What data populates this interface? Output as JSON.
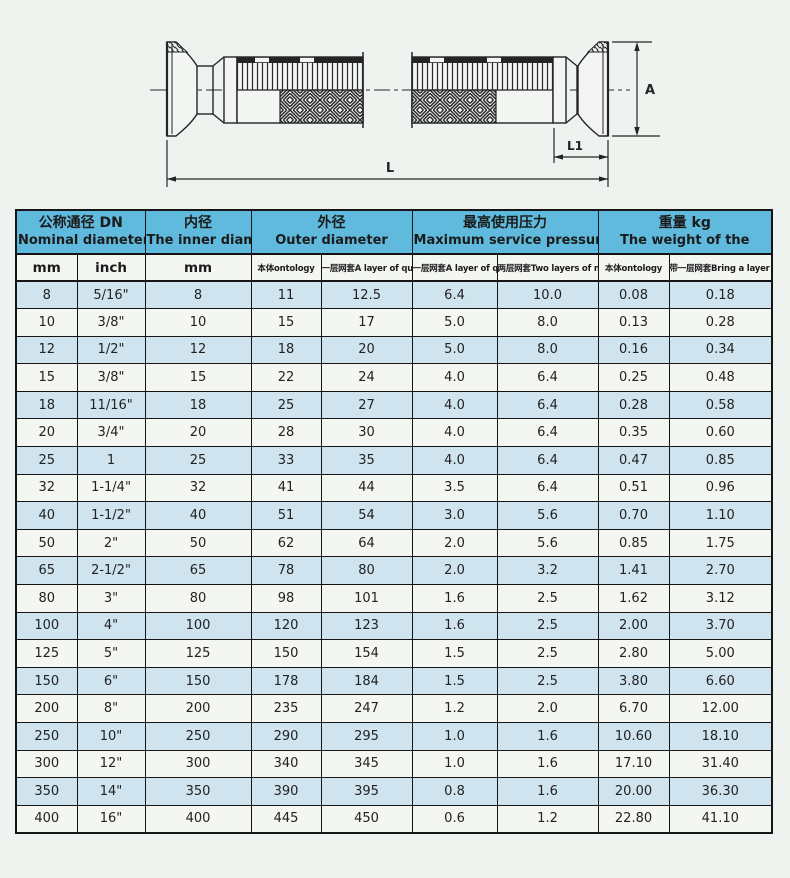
{
  "diagram": {
    "labels": {
      "A": "A",
      "L1": "L1",
      "L": "L"
    }
  },
  "table": {
    "colors": {
      "header_bg": "#5fbadd",
      "row_alt_bg": "#cfe4ee",
      "row_bg": "#f4f6f2",
      "border": "#151515"
    },
    "header_groups": [
      {
        "zh": "公称通径 DN",
        "en": "Nominal diameter"
      },
      {
        "zh": "内径",
        "en": "The inner diameter"
      },
      {
        "zh": "外径",
        "en": "Outer diameter"
      },
      {
        "zh": "最高使用压力",
        "en": "Maximum service pressure"
      },
      {
        "zh": "重量 kg",
        "en": "The weight of the"
      }
    ],
    "sub_headers": [
      "mm",
      "inch",
      "mm",
      "本体ontology",
      "一层网套A layer of quilt",
      "一层网套A layer of quilt",
      "两层网套Two layers of nets",
      "本体ontology",
      "带一层网套Bring a layer of mesh"
    ],
    "rows": [
      [
        "8",
        "5/16\"",
        "8",
        "11",
        "12.5",
        "6.4",
        "10.0",
        "0.08",
        "0.18"
      ],
      [
        "10",
        "3/8\"",
        "10",
        "15",
        "17",
        "5.0",
        "8.0",
        "0.13",
        "0.28"
      ],
      [
        "12",
        "1/2\"",
        "12",
        "18",
        "20",
        "5.0",
        "8.0",
        "0.16",
        "0.34"
      ],
      [
        "15",
        "3/8\"",
        "15",
        "22",
        "24",
        "4.0",
        "6.4",
        "0.25",
        "0.48"
      ],
      [
        "18",
        "11/16\"",
        "18",
        "25",
        "27",
        "4.0",
        "6.4",
        "0.28",
        "0.58"
      ],
      [
        "20",
        "3/4\"",
        "20",
        "28",
        "30",
        "4.0",
        "6.4",
        "0.35",
        "0.60"
      ],
      [
        "25",
        "1",
        "25",
        "33",
        "35",
        "4.0",
        "6.4",
        "0.47",
        "0.85"
      ],
      [
        "32",
        "1-1/4\"",
        "32",
        "41",
        "44",
        "3.5",
        "6.4",
        "0.51",
        "0.96"
      ],
      [
        "40",
        "1-1/2\"",
        "40",
        "51",
        "54",
        "3.0",
        "5.6",
        "0.70",
        "1.10"
      ],
      [
        "50",
        "2\"",
        "50",
        "62",
        "64",
        "2.0",
        "5.6",
        "0.85",
        "1.75"
      ],
      [
        "65",
        "2-1/2\"",
        "65",
        "78",
        "80",
        "2.0",
        "3.2",
        "1.41",
        "2.70"
      ],
      [
        "80",
        "3\"",
        "80",
        "98",
        "101",
        "1.6",
        "2.5",
        "1.62",
        "3.12"
      ],
      [
        "100",
        "4\"",
        "100",
        "120",
        "123",
        "1.6",
        "2.5",
        "2.00",
        "3.70"
      ],
      [
        "125",
        "5\"",
        "125",
        "150",
        "154",
        "1.5",
        "2.5",
        "2.80",
        "5.00"
      ],
      [
        "150",
        "6\"",
        "150",
        "178",
        "184",
        "1.5",
        "2.5",
        "3.80",
        "6.60"
      ],
      [
        "200",
        "8\"",
        "200",
        "235",
        "247",
        "1.2",
        "2.0",
        "6.70",
        "12.00"
      ],
      [
        "250",
        "10\"",
        "250",
        "290",
        "295",
        "1.0",
        "1.6",
        "10.60",
        "18.10"
      ],
      [
        "300",
        "12\"",
        "300",
        "340",
        "345",
        "1.0",
        "1.6",
        "17.10",
        "31.40"
      ],
      [
        "350",
        "14\"",
        "350",
        "390",
        "395",
        "0.8",
        "1.6",
        "20.00",
        "36.30"
      ],
      [
        "400",
        "16\"",
        "400",
        "445",
        "450",
        "0.6",
        "1.2",
        "22.80",
        "41.10"
      ]
    ]
  }
}
